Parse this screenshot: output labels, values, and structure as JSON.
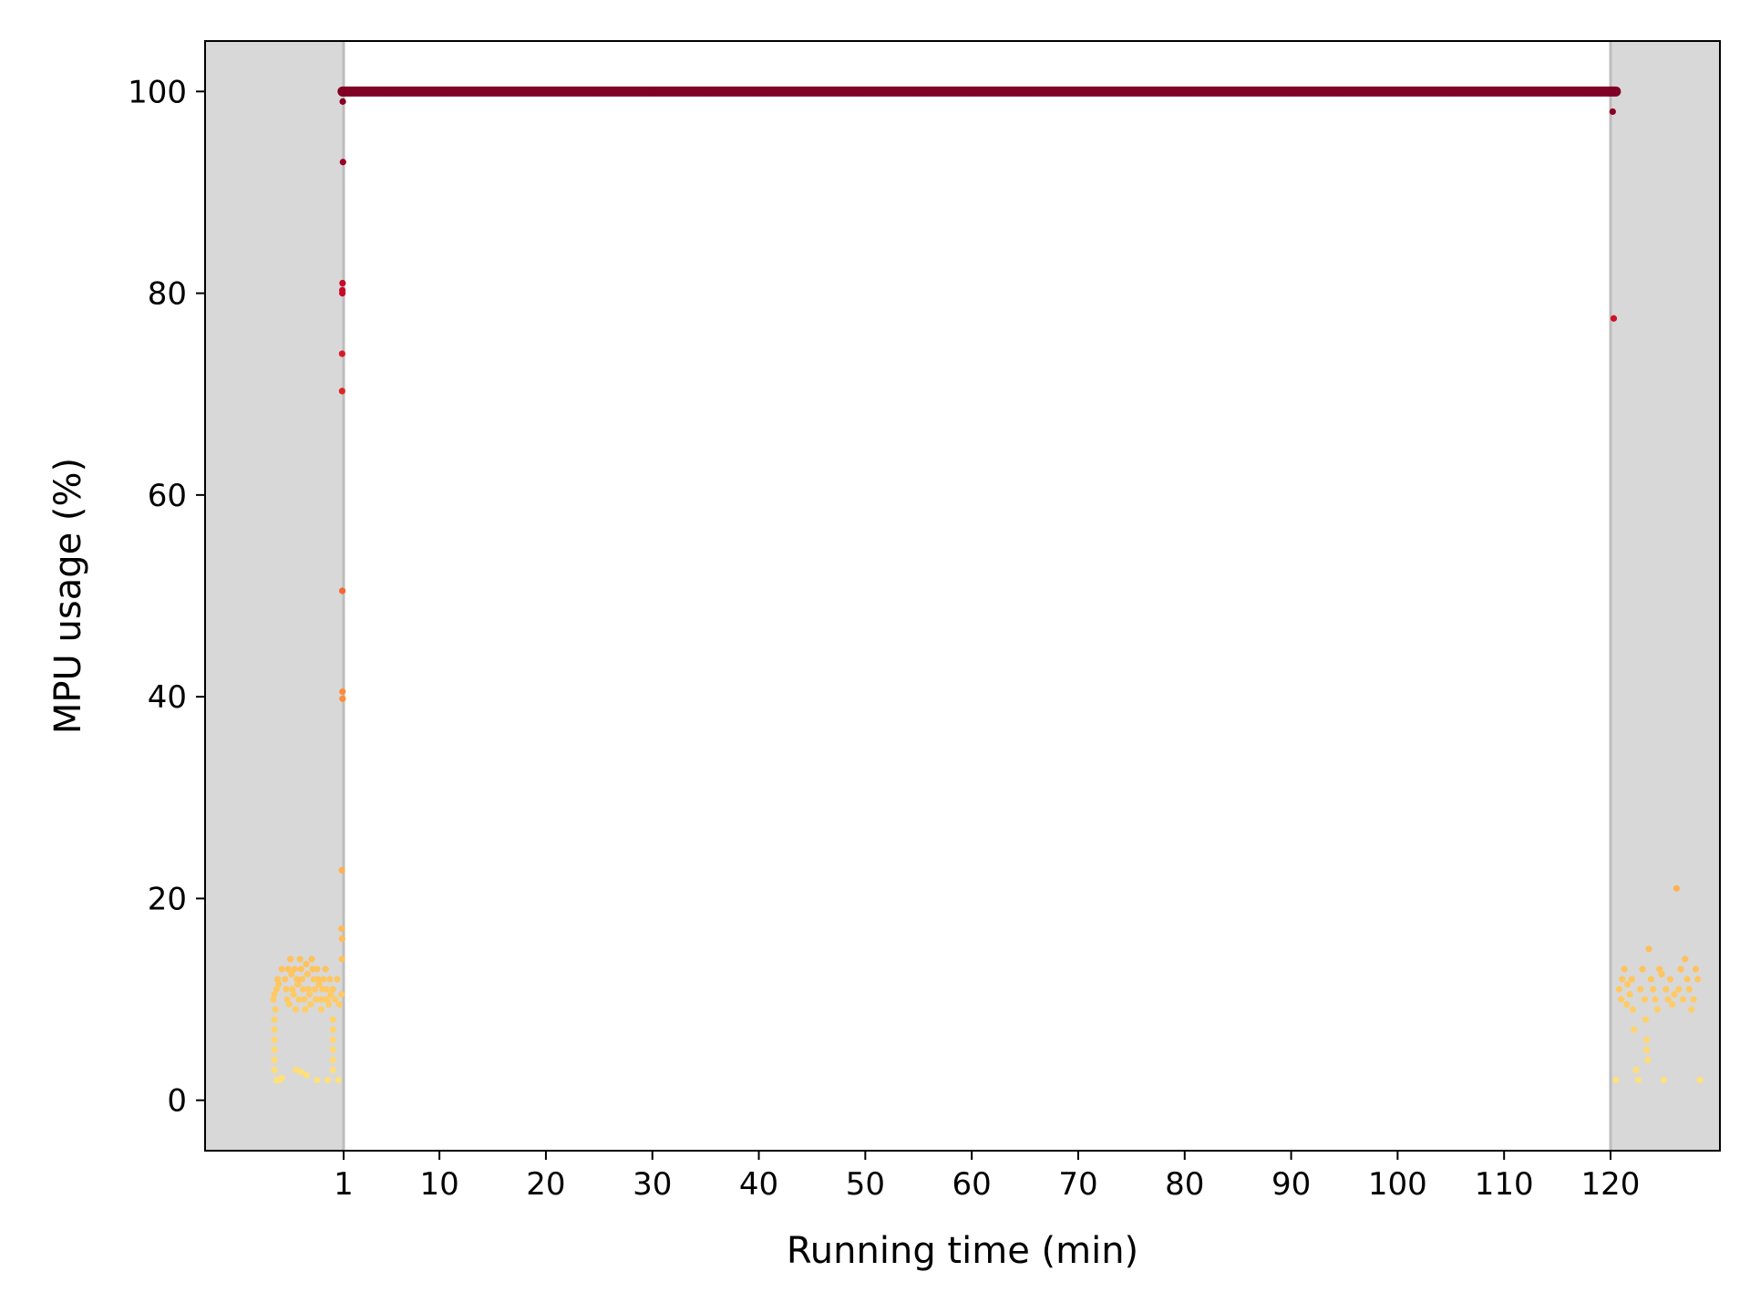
{
  "chart_data": {
    "type": "scatter",
    "title": "",
    "xlabel": "Running time (min)",
    "ylabel": "MPU usage (%)",
    "ylim": [
      -5,
      105
    ],
    "xticks": [
      1,
      10,
      20,
      30,
      40,
      50,
      60,
      70,
      80,
      90,
      100,
      110,
      120
    ],
    "yticks": [
      0,
      20,
      40,
      60,
      80,
      100
    ],
    "grid": false,
    "legend": "none",
    "shaded_regions": [
      {
        "x_start": "axis-left",
        "x_end": 1,
        "color": "#d8d8d8"
      },
      {
        "x_start": 120,
        "x_end": "axis-right",
        "color": "#d8d8d8"
      }
    ],
    "colormap": {
      "low": "#ffe080",
      "mid": "#fd8d3c",
      "high": "#800026"
    },
    "series": [
      {
        "points": [
          [
            1.1,
            100
          ],
          [
            1.2,
            100
          ],
          [
            1.3,
            100
          ],
          [
            1.5,
            100
          ],
          [
            2,
            100
          ],
          [
            5,
            100
          ],
          [
            10,
            100
          ],
          [
            15,
            100
          ],
          [
            20,
            100
          ],
          [
            25,
            100
          ],
          [
            30,
            100
          ],
          [
            35,
            100
          ],
          [
            40,
            100
          ],
          [
            45,
            100
          ],
          [
            50,
            100
          ],
          [
            55,
            100
          ],
          [
            60,
            100
          ],
          [
            65,
            100
          ],
          [
            70,
            100
          ],
          [
            75,
            100
          ],
          [
            80,
            100
          ],
          [
            85,
            100
          ],
          [
            90,
            100
          ],
          [
            95,
            100
          ],
          [
            100,
            100
          ],
          [
            105,
            100
          ],
          [
            110,
            100
          ],
          [
            115,
            100
          ],
          [
            118,
            100
          ],
          [
            119,
            100
          ],
          [
            119.8,
            100
          ],
          [
            120,
            100
          ],
          [
            0.92,
            99
          ],
          [
            0.94,
            93
          ],
          [
            0.9,
            81
          ],
          [
            0.88,
            80.3
          ],
          [
            0.88,
            80
          ],
          [
            0.86,
            74
          ],
          [
            0.86,
            70.3
          ],
          [
            0.88,
            50.5
          ],
          [
            0.9,
            40.5
          ],
          [
            0.9,
            39.8
          ],
          [
            0.84,
            22.8
          ],
          [
            0.8,
            17
          ],
          [
            0.86,
            16
          ],
          [
            0.84,
            14
          ],
          [
            -5.6,
            10
          ],
          [
            -5.5,
            10.5
          ],
          [
            -5.4,
            9
          ],
          [
            -5.3,
            11
          ],
          [
            -5.2,
            12
          ],
          [
            -5.1,
            11.5
          ],
          [
            -5.5,
            8
          ],
          [
            -5.5,
            7
          ],
          [
            -5.5,
            6
          ],
          [
            -5.5,
            5
          ],
          [
            -5.5,
            4
          ],
          [
            -5.5,
            3
          ],
          [
            -5.0,
            2
          ],
          [
            -5.3,
            2
          ],
          [
            -4.8,
            2.2
          ],
          [
            -4.8,
            13
          ],
          [
            -4.5,
            12
          ],
          [
            -4.4,
            11
          ],
          [
            -4.3,
            10
          ],
          [
            -4.2,
            13
          ],
          [
            -4.1,
            9.5
          ],
          [
            -4.0,
            14
          ],
          [
            -3.9,
            12.5
          ],
          [
            -3.8,
            11
          ],
          [
            -3.7,
            10.5
          ],
          [
            -3.6,
            13
          ],
          [
            -3.5,
            9
          ],
          [
            -3.4,
            12
          ],
          [
            -3.3,
            11.5
          ],
          [
            -3.2,
            10
          ],
          [
            -3.1,
            14
          ],
          [
            -3.0,
            13
          ],
          [
            -2.9,
            12
          ],
          [
            -2.8,
            11
          ],
          [
            -2.7,
            10
          ],
          [
            -2.6,
            9
          ],
          [
            -2.5,
            13.5
          ],
          [
            -2.4,
            12.5
          ],
          [
            -2.3,
            11
          ],
          [
            -2.2,
            10.5
          ],
          [
            -2.1,
            9.5
          ],
          [
            -2.0,
            14
          ],
          [
            -1.9,
            13
          ],
          [
            -1.8,
            12
          ],
          [
            -1.7,
            11
          ],
          [
            -1.6,
            10
          ],
          [
            -1.5,
            13
          ],
          [
            -1.4,
            12
          ],
          [
            -1.3,
            11.5
          ],
          [
            -1.2,
            10
          ],
          [
            -1.1,
            9
          ],
          [
            -1.0,
            11
          ],
          [
            -0.9,
            12
          ],
          [
            -0.8,
            10
          ],
          [
            -0.7,
            13
          ],
          [
            -0.6,
            11
          ],
          [
            -0.5,
            10
          ],
          [
            -0.4,
            9.5
          ],
          [
            -0.3,
            12
          ],
          [
            -0.2,
            10.5
          ],
          [
            0.0,
            11
          ],
          [
            0.2,
            10
          ],
          [
            0.4,
            12
          ],
          [
            0.6,
            9.5
          ],
          [
            0.8,
            10.5
          ],
          [
            -3.5,
            3
          ],
          [
            -3.0,
            2.8
          ],
          [
            -2.5,
            2.5
          ],
          [
            -1.5,
            2
          ],
          [
            -0.5,
            2
          ],
          [
            0.5,
            2
          ],
          [
            0.0,
            8
          ],
          [
            0.0,
            7
          ],
          [
            0.0,
            6
          ],
          [
            0.0,
            5
          ],
          [
            0.0,
            4
          ],
          [
            0.0,
            3
          ],
          [
            120.2,
            98
          ],
          [
            120.3,
            77.5
          ],
          [
            120.5,
            2
          ],
          [
            120.8,
            11
          ],
          [
            121.0,
            10
          ],
          [
            121.1,
            12
          ],
          [
            121.3,
            13
          ],
          [
            121.5,
            9.5
          ],
          [
            121.6,
            11.5
          ],
          [
            121.8,
            10.5
          ],
          [
            122.0,
            12
          ],
          [
            122.1,
            9
          ],
          [
            122.2,
            7
          ],
          [
            122.4,
            3
          ],
          [
            122.6,
            2
          ],
          [
            122.8,
            11
          ],
          [
            123.0,
            13
          ],
          [
            123.2,
            10
          ],
          [
            123.3,
            8
          ],
          [
            123.4,
            6
          ],
          [
            123.4,
            5
          ],
          [
            123.5,
            4
          ],
          [
            123.6,
            15
          ],
          [
            123.8,
            12
          ],
          [
            124.0,
            11
          ],
          [
            124.2,
            10
          ],
          [
            124.4,
            9
          ],
          [
            124.6,
            13
          ],
          [
            124.8,
            12.5
          ],
          [
            125.0,
            2
          ],
          [
            125.2,
            11
          ],
          [
            125.4,
            10
          ],
          [
            125.6,
            12
          ],
          [
            125.8,
            9.5
          ],
          [
            126.0,
            10.5
          ],
          [
            126.2,
            21
          ],
          [
            126.4,
            11
          ],
          [
            126.6,
            13
          ],
          [
            126.8,
            10
          ],
          [
            127.0,
            14
          ],
          [
            127.2,
            12
          ],
          [
            127.4,
            11
          ],
          [
            127.6,
            9
          ],
          [
            127.8,
            10
          ],
          [
            128.0,
            13
          ],
          [
            128.2,
            12
          ],
          [
            128.4,
            2
          ]
        ]
      }
    ]
  }
}
